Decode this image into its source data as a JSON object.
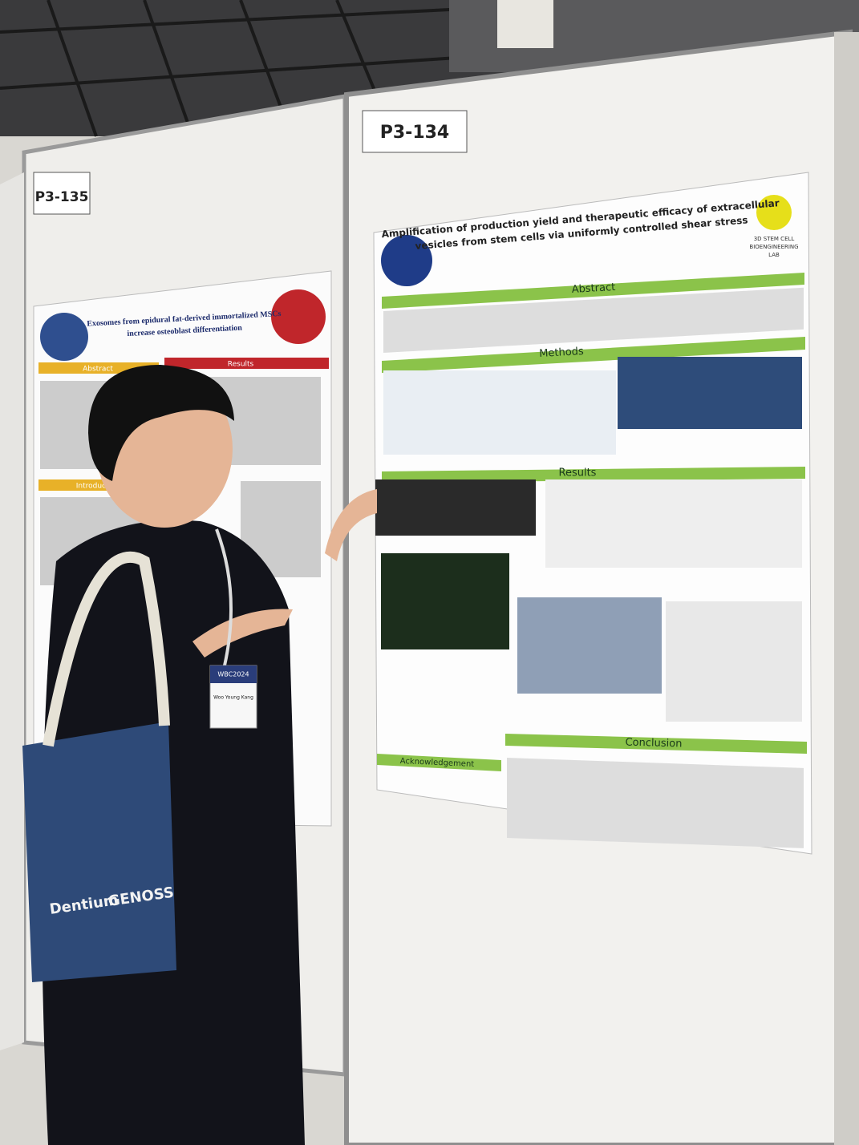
{
  "boards": [
    {
      "label": "P3-135"
    },
    {
      "label": "P3-134"
    }
  ],
  "left_poster": {
    "title_lines": [
      "Exosomes from epidural fat-derived immortalized MSCs",
      "increase osteoblast differentiation"
    ],
    "sections": [
      "Abstract",
      "Results",
      "Introduction"
    ]
  },
  "right_poster": {
    "title_lines": [
      "Amplification of production yield and therapeutic efficacy of extracellular",
      "vesicles from stem cells via uniformly controlled shear stress"
    ],
    "lab_lines": [
      "3D STEM CELL",
      "BIOENGINEERING",
      "LAB"
    ],
    "sections": [
      "Abstract",
      "Methods",
      "Results",
      "Conclusion",
      "Acknowledgement"
    ]
  },
  "badge": {
    "event": "WBC2024",
    "name": "Woo Young Kang"
  },
  "bag": {
    "brands": [
      "Dentium",
      "GENOSS"
    ]
  }
}
